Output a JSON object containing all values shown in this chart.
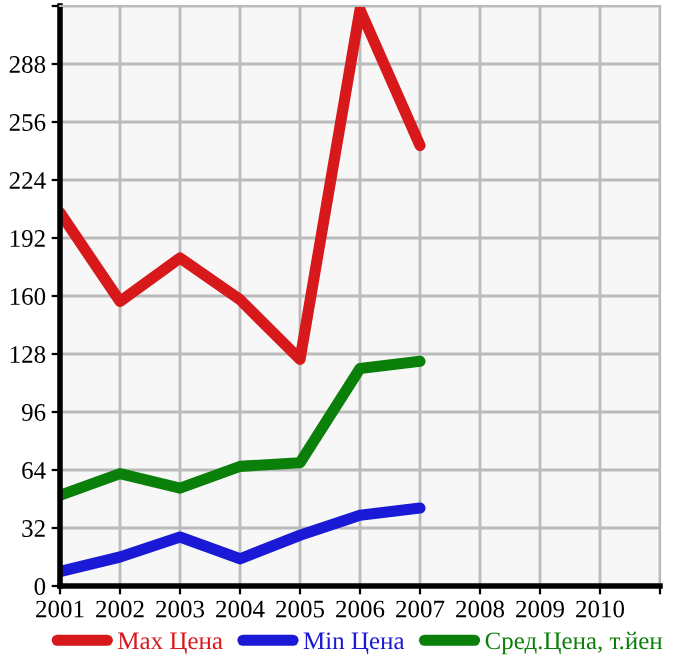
{
  "chart_data": {
    "type": "line",
    "x": [
      2001,
      2002,
      2003,
      2004,
      2005,
      2006,
      2007
    ],
    "series": [
      {
        "name": "Max Цена",
        "color": "#d7191c",
        "values": [
          206,
          157,
          181,
          158,
          125,
          318,
          243
        ]
      },
      {
        "name": "Min Цена",
        "color": "#1a1ad6",
        "values": [
          8,
          16,
          27,
          15,
          28,
          39,
          43
        ]
      },
      {
        "name": "Сред.Цена, т.йен",
        "color": "#0a800a",
        "values": [
          50,
          62,
          54,
          66,
          68,
          120,
          124
        ]
      }
    ],
    "xlim": [
      2001,
      2011
    ],
    "xticks": [
      2001,
      2002,
      2003,
      2004,
      2005,
      2006,
      2007,
      2008,
      2009,
      2010,
      {
        "value": 2011,
        "label": null
      }
    ],
    "ylim": [
      0,
      320
    ],
    "yticks": [
      0,
      32,
      64,
      96,
      128,
      160,
      192,
      224,
      256,
      288,
      {
        "value": 320,
        "label": null
      }
    ],
    "grid": true,
    "legend": "bottom",
    "marker": "none",
    "line_style": "solid"
  }
}
